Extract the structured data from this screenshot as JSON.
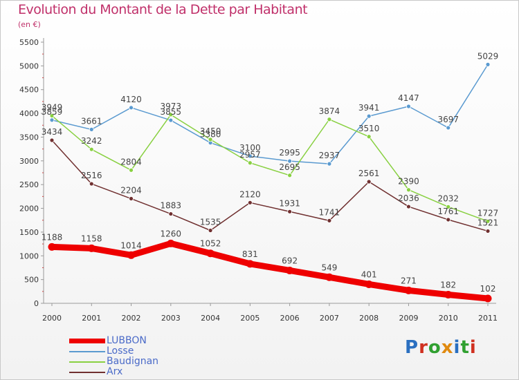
{
  "title": "Evolution du Montant de la Dette par Habitant",
  "subtitle": "(en €)",
  "logo_text": "Proxiti",
  "logo_colors": [
    "#2a6fc0",
    "#d03020",
    "#30a030",
    "#e08a10",
    "#2a6fc0",
    "#30a030",
    "#d03020"
  ],
  "chart_data": {
    "type": "line",
    "x": [
      "2000",
      "2001",
      "2002",
      "2003",
      "2004",
      "2005",
      "2006",
      "2007",
      "2008",
      "2009",
      "2010",
      "2011"
    ],
    "ylim": [
      0,
      5500
    ],
    "yticks": [
      "0",
      "500",
      "1000",
      "1500",
      "2000",
      "2500",
      "3000",
      "3500",
      "4000",
      "4500",
      "5000",
      "5500"
    ],
    "grid": false,
    "legend_position": "bottom-left",
    "series": [
      {
        "name": "LUBBON",
        "color": "#ee0000",
        "values": [
          1188,
          1158,
          1014,
          1260,
          1052,
          831,
          692,
          549,
          401,
          271,
          182,
          102
        ],
        "labels": [
          "1188",
          "1158",
          "1014",
          "1260",
          "1052",
          "831",
          "692",
          "549",
          "401",
          "271",
          "182",
          "102"
        ]
      },
      {
        "name": "Losse",
        "color": "#5a9ad0",
        "values": [
          3859,
          3661,
          4120,
          3855,
          3380,
          3100,
          2995,
          2937,
          3941,
          4147,
          3697,
          5029
        ],
        "labels": [
          "3859",
          "3661",
          "4120",
          "3855",
          "3380",
          "3100",
          "2995",
          "2937",
          "3941",
          "4147",
          "3697",
          "5029"
        ]
      },
      {
        "name": "Baudignan",
        "color": "#88d040",
        "values": [
          3949,
          3242,
          2804,
          3973,
          3450,
          2957,
          2695,
          3874,
          3510,
          2390,
          2032,
          1727
        ],
        "labels": [
          "3949",
          "3242",
          "2804",
          "3973",
          "3450",
          "2957",
          "2695",
          "3874",
          "3510",
          "2390",
          "2032",
          "1727"
        ]
      },
      {
        "name": "Arx",
        "color": "#703030",
        "values": [
          3434,
          2516,
          2204,
          1883,
          1535,
          2120,
          1931,
          1741,
          2561,
          2036,
          1761,
          1521
        ],
        "labels": [
          "3434",
          "2516",
          "2204",
          "1883",
          "1535",
          "2120",
          "1931",
          "1741",
          "2561",
          "2036",
          "1761",
          "1521"
        ]
      }
    ]
  }
}
